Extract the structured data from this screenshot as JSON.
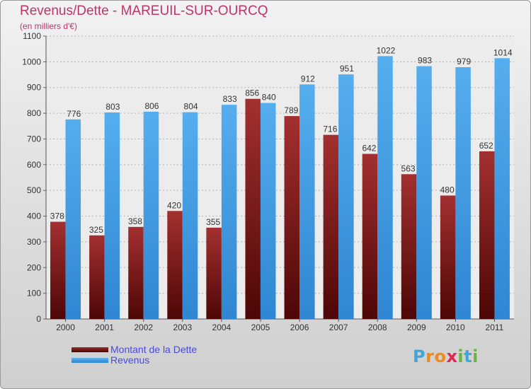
{
  "chart_data": {
    "type": "bar",
    "title": "Revenus/Dette - MAREUIL-SUR-OURCQ",
    "subtitle": "(en milliers d'€)",
    "categories": [
      "2000",
      "2001",
      "2002",
      "2003",
      "2004",
      "2005",
      "2006",
      "2007",
      "2008",
      "2009",
      "2010",
      "2011"
    ],
    "series": [
      {
        "name": "Montant de la Dette",
        "color": "#7a1414",
        "values": [
          378,
          325,
          358,
          420,
          355,
          856,
          789,
          716,
          642,
          563,
          480,
          652
        ]
      },
      {
        "name": "Revenus",
        "color": "#3d9be6",
        "values": [
          776,
          803,
          806,
          804,
          833,
          840,
          912,
          951,
          1022,
          983,
          979,
          1014
        ]
      }
    ],
    "ylim": [
      0,
      1100
    ],
    "yticks": [
      0,
      100,
      200,
      300,
      400,
      500,
      600,
      700,
      800,
      900,
      1000,
      1100
    ],
    "grid": true,
    "legend_position": "bottom-left"
  },
  "branding": {
    "logo_letters": [
      "P",
      "r",
      "o",
      "x",
      "i",
      "t",
      "i"
    ],
    "logo_colors": [
      "#3ca7d8",
      "#f08a1d",
      "#f08a1d",
      "#e2264f",
      "#6db33f",
      "#3ca7d8",
      "#6db33f"
    ]
  }
}
